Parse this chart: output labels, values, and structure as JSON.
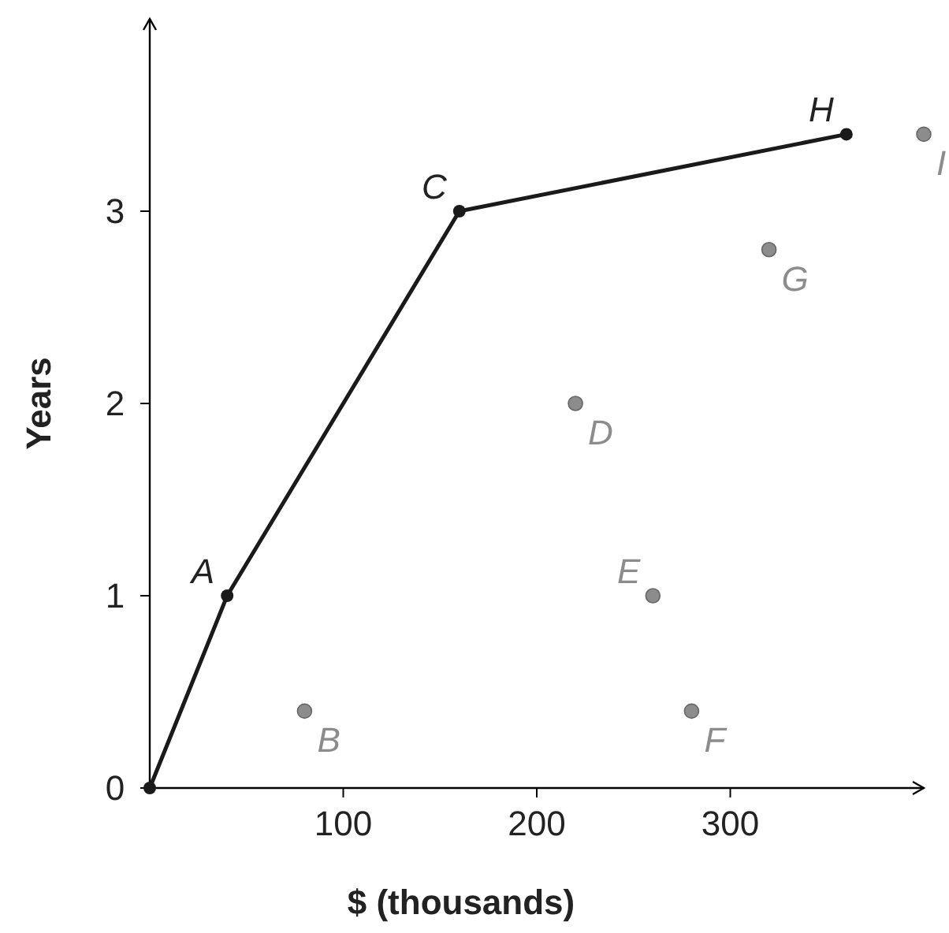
{
  "chart_data": {
    "type": "line",
    "xlabel": "$ (thousands)",
    "ylabel": "Years",
    "xlim": [
      0,
      400
    ],
    "ylim": [
      0,
      4
    ],
    "xticks": [
      100,
      200,
      300
    ],
    "yticks": [
      0,
      1,
      2,
      3
    ],
    "grid": false,
    "marker": "circle",
    "line_style": "solid",
    "series": [
      {
        "color": "#1a1a1a",
        "x": [
          0,
          40,
          160,
          360
        ],
        "values": [
          0,
          1,
          3,
          3.4
        ]
      },
      {
        "type": "scatter",
        "color": "#8c8c8c",
        "x": [
          80,
          220,
          260,
          280,
          320,
          400
        ],
        "values": [
          0.4,
          2,
          1,
          0.4,
          2.8,
          3.4
        ]
      }
    ],
    "annotations": [
      {
        "text": "A",
        "x": 40,
        "y": 1
      },
      {
        "text": "B",
        "x": 80,
        "y": 0.4
      },
      {
        "text": "C",
        "x": 160,
        "y": 3
      },
      {
        "text": "D",
        "x": 220,
        "y": 2
      },
      {
        "text": "E",
        "x": 260,
        "y": 1
      },
      {
        "text": "F",
        "x": 280,
        "y": 0.4
      },
      {
        "text": "G",
        "x": 320,
        "y": 2.8
      },
      {
        "text": "H",
        "x": 360,
        "y": 3.4
      },
      {
        "text": "I",
        "x": 400,
        "y": 3.4
      }
    ]
  }
}
